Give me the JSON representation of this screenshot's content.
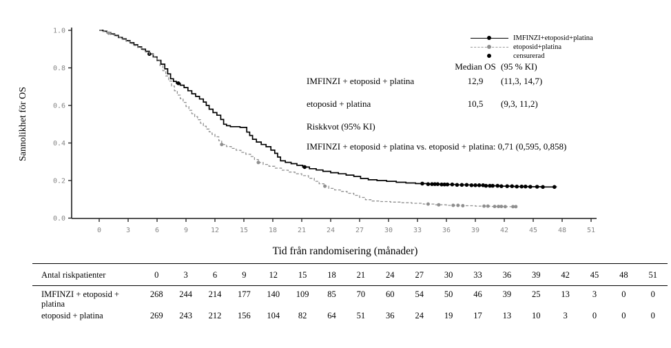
{
  "chart_data": {
    "type": "line",
    "subtype": "kaplan-meier",
    "title": "",
    "xlabel": "Tid från randomisering (månader)",
    "ylabel": "Sannolikhet för OS",
    "xlim": [
      0,
      51
    ],
    "ylim": [
      0.0,
      1.0
    ],
    "x_ticks": [
      0,
      3,
      6,
      9,
      12,
      15,
      18,
      21,
      24,
      27,
      30,
      33,
      36,
      39,
      42,
      45,
      48,
      51
    ],
    "y_ticks": [
      0.0,
      0.2,
      0.4,
      0.6,
      0.8,
      1.0
    ],
    "grid": false,
    "legend": {
      "position": "top-right",
      "entries": [
        {
          "label": "IMFINZI+etoposid+platina",
          "style": "solid",
          "color": "#000000"
        },
        {
          "label": "etoposid+platina",
          "style": "dashed",
          "color": "#8f8f8f"
        },
        {
          "label": "censurerad",
          "style": "dot",
          "color": "#000000"
        }
      ]
    },
    "series": [
      {
        "name": "IMFINZI+etoposid+platina",
        "color": "#000000",
        "style": "solid",
        "points": [
          [
            0,
            1.0
          ],
          [
            0.4,
            0.995
          ],
          [
            0.8,
            0.988
          ],
          [
            1.2,
            0.981
          ],
          [
            1.6,
            0.973
          ],
          [
            2.0,
            0.962
          ],
          [
            2.4,
            0.954
          ],
          [
            2.8,
            0.945
          ],
          [
            3.2,
            0.934
          ],
          [
            3.6,
            0.923
          ],
          [
            4.0,
            0.912
          ],
          [
            4.4,
            0.9
          ],
          [
            4.8,
            0.888
          ],
          [
            5.2,
            0.874
          ],
          [
            5.6,
            0.858
          ],
          [
            6.0,
            0.84
          ],
          [
            6.4,
            0.82
          ],
          [
            6.8,
            0.795
          ],
          [
            7.1,
            0.768
          ],
          [
            7.4,
            0.742
          ],
          [
            7.7,
            0.728
          ],
          [
            8.0,
            0.718
          ],
          [
            8.4,
            0.708
          ],
          [
            8.8,
            0.695
          ],
          [
            9.2,
            0.678
          ],
          [
            9.6,
            0.662
          ],
          [
            10.0,
            0.648
          ],
          [
            10.4,
            0.634
          ],
          [
            10.8,
            0.618
          ],
          [
            11.1,
            0.6
          ],
          [
            11.4,
            0.58
          ],
          [
            11.8,
            0.562
          ],
          [
            12.2,
            0.548
          ],
          [
            12.6,
            0.525
          ],
          [
            12.9,
            0.5
          ],
          [
            13.2,
            0.492
          ],
          [
            13.6,
            0.487
          ],
          [
            14.6,
            0.483
          ],
          [
            15.3,
            0.458
          ],
          [
            15.6,
            0.44
          ],
          [
            15.9,
            0.42
          ],
          [
            16.3,
            0.405
          ],
          [
            16.8,
            0.392
          ],
          [
            17.3,
            0.38
          ],
          [
            17.8,
            0.362
          ],
          [
            18.2,
            0.345
          ],
          [
            18.5,
            0.325
          ],
          [
            18.8,
            0.305
          ],
          [
            19.3,
            0.297
          ],
          [
            19.9,
            0.29
          ],
          [
            20.5,
            0.281
          ],
          [
            21.1,
            0.272
          ],
          [
            21.8,
            0.263
          ],
          [
            22.5,
            0.256
          ],
          [
            23.2,
            0.249
          ],
          [
            24.0,
            0.242
          ],
          [
            24.8,
            0.236
          ],
          [
            25.6,
            0.229
          ],
          [
            26.4,
            0.222
          ],
          [
            27.1,
            0.211
          ],
          [
            27.9,
            0.204
          ],
          [
            28.8,
            0.2
          ],
          [
            29.8,
            0.196
          ],
          [
            30.8,
            0.191
          ],
          [
            31.8,
            0.187
          ],
          [
            32.8,
            0.184
          ],
          [
            34.0,
            0.181
          ],
          [
            35.5,
            0.179
          ],
          [
            37.0,
            0.177
          ],
          [
            38.5,
            0.175
          ],
          [
            40.0,
            0.172
          ],
          [
            41.5,
            0.17
          ],
          [
            43.0,
            0.168
          ],
          [
            44.5,
            0.167
          ],
          [
            46.0,
            0.166
          ],
          [
            47.4,
            0.165
          ]
        ],
        "censored_times": [
          5.2,
          8.2,
          21.3,
          33.5,
          34.1,
          34.5,
          34.8,
          35.1,
          35.5,
          35.8,
          36.1,
          36.6,
          37.1,
          37.6,
          38.1,
          38.6,
          39.0,
          39.4,
          39.8,
          40.1,
          40.5,
          40.8,
          41.3,
          41.7,
          42.3,
          42.8,
          43.3,
          43.8,
          44.2,
          44.7,
          45.4,
          46.0,
          47.2
        ]
      },
      {
        "name": "etoposid+platina",
        "color": "#8f8f8f",
        "style": "dashed",
        "points": [
          [
            0,
            1.0
          ],
          [
            0.4,
            0.993
          ],
          [
            0.8,
            0.985
          ],
          [
            1.2,
            0.977
          ],
          [
            1.6,
            0.969
          ],
          [
            2.0,
            0.96
          ],
          [
            2.4,
            0.951
          ],
          [
            2.8,
            0.941
          ],
          [
            3.2,
            0.93
          ],
          [
            3.6,
            0.919
          ],
          [
            4.0,
            0.908
          ],
          [
            4.4,
            0.896
          ],
          [
            4.8,
            0.884
          ],
          [
            5.2,
            0.872
          ],
          [
            5.6,
            0.856
          ],
          [
            6.0,
            0.838
          ],
          [
            6.3,
            0.812
          ],
          [
            6.6,
            0.785
          ],
          [
            6.9,
            0.757
          ],
          [
            7.2,
            0.73
          ],
          [
            7.5,
            0.703
          ],
          [
            7.8,
            0.678
          ],
          [
            8.1,
            0.655
          ],
          [
            8.4,
            0.636
          ],
          [
            8.7,
            0.616
          ],
          [
            9.0,
            0.594
          ],
          [
            9.3,
            0.574
          ],
          [
            9.6,
            0.556
          ],
          [
            9.9,
            0.54
          ],
          [
            10.2,
            0.524
          ],
          [
            10.5,
            0.505
          ],
          [
            10.8,
            0.489
          ],
          [
            11.1,
            0.474
          ],
          [
            11.4,
            0.459
          ],
          [
            11.7,
            0.446
          ],
          [
            12.0,
            0.433
          ],
          [
            12.4,
            0.412
          ],
          [
            12.7,
            0.392
          ],
          [
            13.2,
            0.381
          ],
          [
            13.7,
            0.371
          ],
          [
            14.2,
            0.361
          ],
          [
            14.7,
            0.35
          ],
          [
            15.2,
            0.34
          ],
          [
            15.7,
            0.328
          ],
          [
            16.1,
            0.312
          ],
          [
            16.5,
            0.296
          ],
          [
            17.0,
            0.286
          ],
          [
            17.6,
            0.276
          ],
          [
            18.2,
            0.266
          ],
          [
            18.9,
            0.255
          ],
          [
            19.6,
            0.245
          ],
          [
            20.3,
            0.236
          ],
          [
            21.0,
            0.226
          ],
          [
            21.7,
            0.212
          ],
          [
            22.3,
            0.196
          ],
          [
            22.8,
            0.183
          ],
          [
            23.3,
            0.17
          ],
          [
            23.8,
            0.158
          ],
          [
            24.4,
            0.15
          ],
          [
            25.0,
            0.142
          ],
          [
            25.7,
            0.132
          ],
          [
            26.4,
            0.121
          ],
          [
            27.0,
            0.11
          ],
          [
            27.6,
            0.098
          ],
          [
            28.3,
            0.091
          ],
          [
            29.2,
            0.088
          ],
          [
            30.2,
            0.085
          ],
          [
            31.2,
            0.082
          ],
          [
            32.4,
            0.079
          ],
          [
            33.6,
            0.075
          ],
          [
            34.8,
            0.071
          ],
          [
            36.0,
            0.068
          ],
          [
            37.5,
            0.066
          ],
          [
            39.0,
            0.064
          ],
          [
            40.5,
            0.062
          ],
          [
            42.0,
            0.061
          ],
          [
            43.3,
            0.06
          ]
        ],
        "censored_times": [
          1.0,
          12.7,
          16.5,
          23.4,
          34.1,
          35.2,
          36.7,
          37.2,
          37.7,
          39.9,
          40.3,
          41.0,
          41.4,
          41.7,
          42.1,
          42.9,
          43.2
        ]
      }
    ]
  },
  "stats": {
    "header_median": "Median OS",
    "header_ci": "(95 % KI)",
    "rows": [
      {
        "label": "IMFINZI + etoposid + platina",
        "median": "12,9",
        "ci": "(11,3, 14,7)"
      },
      {
        "label": "etoposid + platina",
        "median": "10,5",
        "ci": "(9,3, 11,2)"
      }
    ],
    "hazard_ratio_title": "Riskkvot (95% KI)",
    "hazard_ratio_text": "IMFINZI + etoposid + platina vs. etoposid + platina: 0,71 (0,595, 0,858)"
  },
  "risk_table": {
    "title": "Antal riskpatienter",
    "time_points": [
      "0",
      "3",
      "6",
      "9",
      "12",
      "15",
      "18",
      "21",
      "24",
      "27",
      "30",
      "33",
      "36",
      "39",
      "42",
      "45",
      "48",
      "51"
    ],
    "rows": [
      {
        "label": "IMFINZI + etoposid + platina",
        "values": [
          "268",
          "244",
          "214",
          "177",
          "140",
          "109",
          "85",
          "70",
          "60",
          "54",
          "50",
          "46",
          "39",
          "25",
          "13",
          "3",
          "0",
          "0"
        ]
      },
      {
        "label": "etoposid + platina",
        "values": [
          "269",
          "243",
          "212",
          "156",
          "104",
          "82",
          "64",
          "51",
          "36",
          "24",
          "19",
          "17",
          "13",
          "10",
          "3",
          "0",
          "0",
          "0"
        ]
      }
    ]
  }
}
